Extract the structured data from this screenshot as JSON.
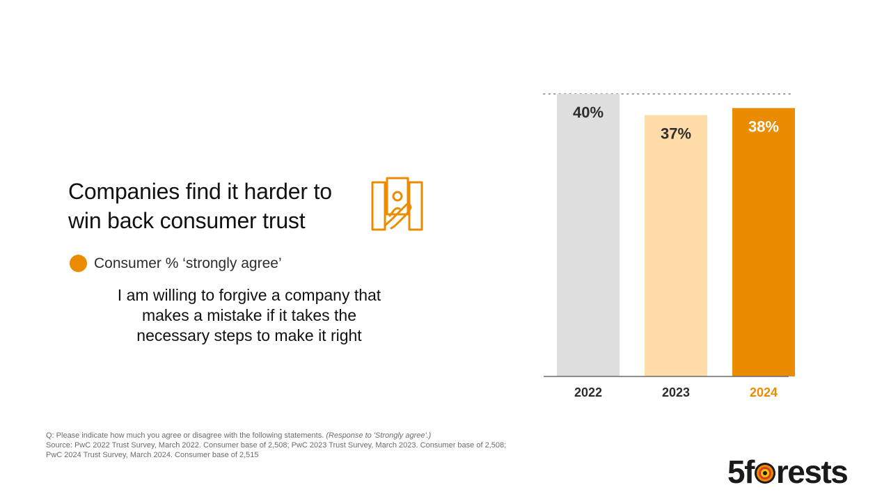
{
  "title": "Companies find it harder to win back consumer trust",
  "legend": {
    "label": "Consumer % ‘strongly agree’",
    "color": "#eb8c00"
  },
  "statement": "I am willing to forgive a company that makes a mistake if it takes the necessary steps to make it right",
  "footnote": {
    "question": "Q: Please indicate how much you agree or disagree with the following statements.",
    "question_note": "(Response to 'Strongly agree'.)",
    "source_line1": "Source: PwC 2022 Trust Survey, March 2022. Consumer base of 2,508; PwC 2023 Trust Survey, March 2023. Consumer base of 2,508;",
    "source_line2": "PwC 2024 Trust Survey, March 2024. Consumer base of 2,515"
  },
  "logo": {
    "prefix": "5f",
    "suffix": "rests"
  },
  "icons": {
    "title_icon": "hand-holding-money-icon",
    "logo_icon": "target-ring-icon"
  },
  "chart_data": {
    "type": "bar",
    "categories": [
      "2022",
      "2023",
      "2024"
    ],
    "values": [
      40,
      37,
      38
    ],
    "value_labels": [
      "40%",
      "37%",
      "38%"
    ],
    "colors": [
      "#dedede",
      "#ffdca8",
      "#eb8c00"
    ],
    "label_colors": [
      "#2d2d2d",
      "#2d2d2d",
      "#ffffff"
    ],
    "tick_colors": [
      "#2d2d2d",
      "#2d2d2d",
      "#eb8c00"
    ],
    "ylim": [
      0,
      40
    ],
    "reference_line": 40,
    "title": "",
    "xlabel": "",
    "ylabel": ""
  }
}
